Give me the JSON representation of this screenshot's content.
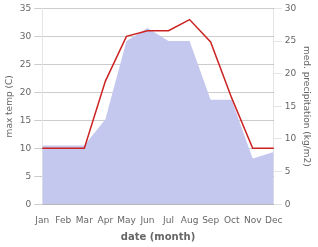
{
  "chart_data": {
    "type": "line",
    "xlabel": "date (month)",
    "ylabel": "max temp (C)",
    "y2label": "med. precipitation (kg/m2)",
    "categories": [
      "Jan",
      "Feb",
      "Mar",
      "Apr",
      "May",
      "Jun",
      "Jul",
      "Aug",
      "Sep",
      "Oct",
      "Nov",
      "Dec"
    ],
    "series": [
      {
        "type": "line",
        "color": "#cc2222",
        "values": [
          10,
          10,
          10,
          22,
          30,
          31,
          31,
          33,
          29,
          19,
          10,
          10
        ]
      },
      {
        "type": "area",
        "color": "#c5c8ee",
        "axis": "y2",
        "values": [
          9,
          9,
          9,
          13,
          25,
          27,
          25,
          25,
          16,
          16,
          7,
          8
        ]
      }
    ],
    "ylim": [
      0,
      35
    ],
    "yticks": [
      0,
      5,
      10,
      15,
      20,
      25,
      30,
      35
    ],
    "y2lim": [
      0,
      30
    ],
    "y2ticks": [
      0,
      5,
      10,
      15,
      20,
      25,
      30
    ],
    "grid": true
  }
}
